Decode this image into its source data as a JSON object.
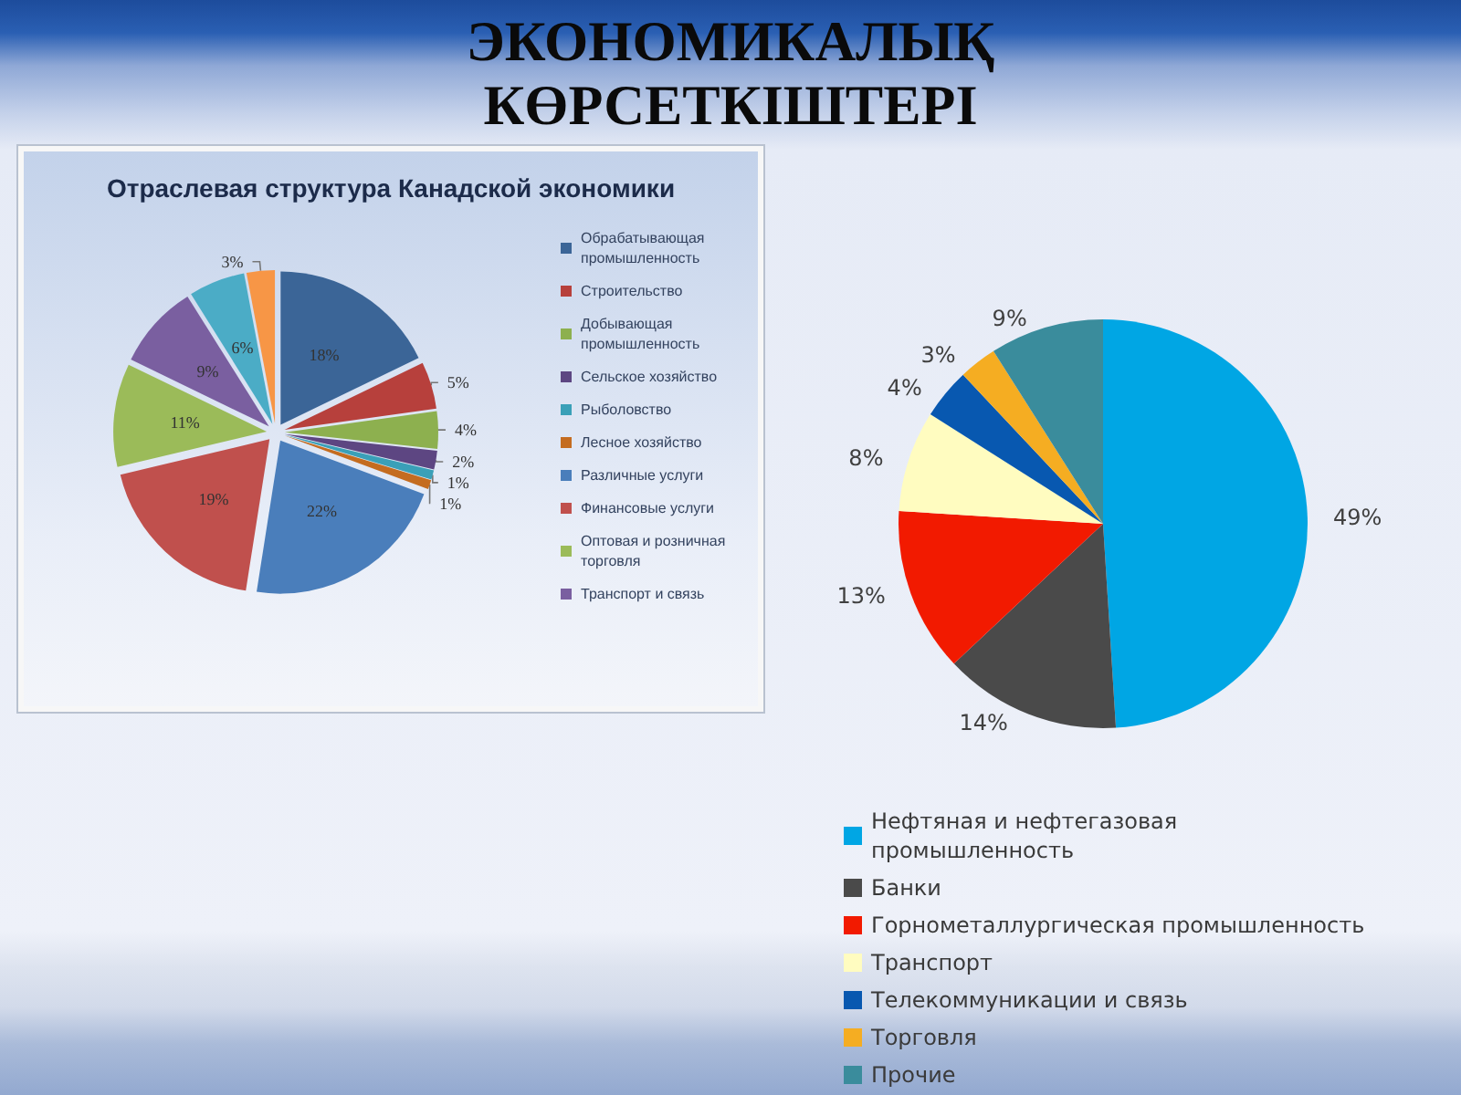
{
  "chart_data": [
    {
      "type": "other",
      "title": "ЭКОНОМИКАЛЫҚ КӨРСЕТКІШТЕРІ"
    },
    {
      "type": "pie",
      "title": "Отраслевая структура Канадской экономики",
      "categories": [
        "Обрабатывающая промышленность",
        "Строительство",
        "Добывающая промышленность",
        "Сельское хозяйство",
        "Рыболовство",
        "Лесное хозяйство",
        "Различные услуги",
        "Финансовые услуги",
        "Оптовая и розничная торговля",
        "Транспорт и связь",
        null,
        null
      ],
      "values": [
        18,
        5,
        4,
        2,
        1,
        1,
        22,
        19,
        11,
        9,
        6,
        3
      ],
      "value_labels": [
        "18%",
        "5%",
        "4%",
        "2%",
        "1%",
        "1%",
        "22%",
        "19%",
        "11%",
        "9%",
        "6%",
        "3%"
      ],
      "colors": [
        "#3b6597",
        "#b7403c",
        "#8db04f",
        "#5d4682",
        "#3aa0b8",
        "#c46c20",
        "#4a7ebb",
        "#c0504d",
        "#9bbb59",
        "#7a5fa0",
        "#4bacc6",
        "#f79646"
      ],
      "legend": "right"
    },
    {
      "type": "pie",
      "categories": [
        "Нефтяная и нефтегазовая промышленность",
        "Банки",
        "Горнометаллургическая промышленность",
        "Транспорт",
        "Телекоммуникации и связь",
        "Торговля",
        "Прочие"
      ],
      "values": [
        49,
        14,
        13,
        8,
        4,
        3,
        9
      ],
      "value_labels": [
        "49%",
        "14%",
        "13%",
        "8%",
        "4%",
        "3%",
        "9%"
      ],
      "colors": [
        "#00a6e4",
        "#4a4a4a",
        "#f21a00",
        "#fffcc0",
        "#0858b0",
        "#f5ad22",
        "#3a8c9c"
      ],
      "legend": "bottom"
    }
  ]
}
